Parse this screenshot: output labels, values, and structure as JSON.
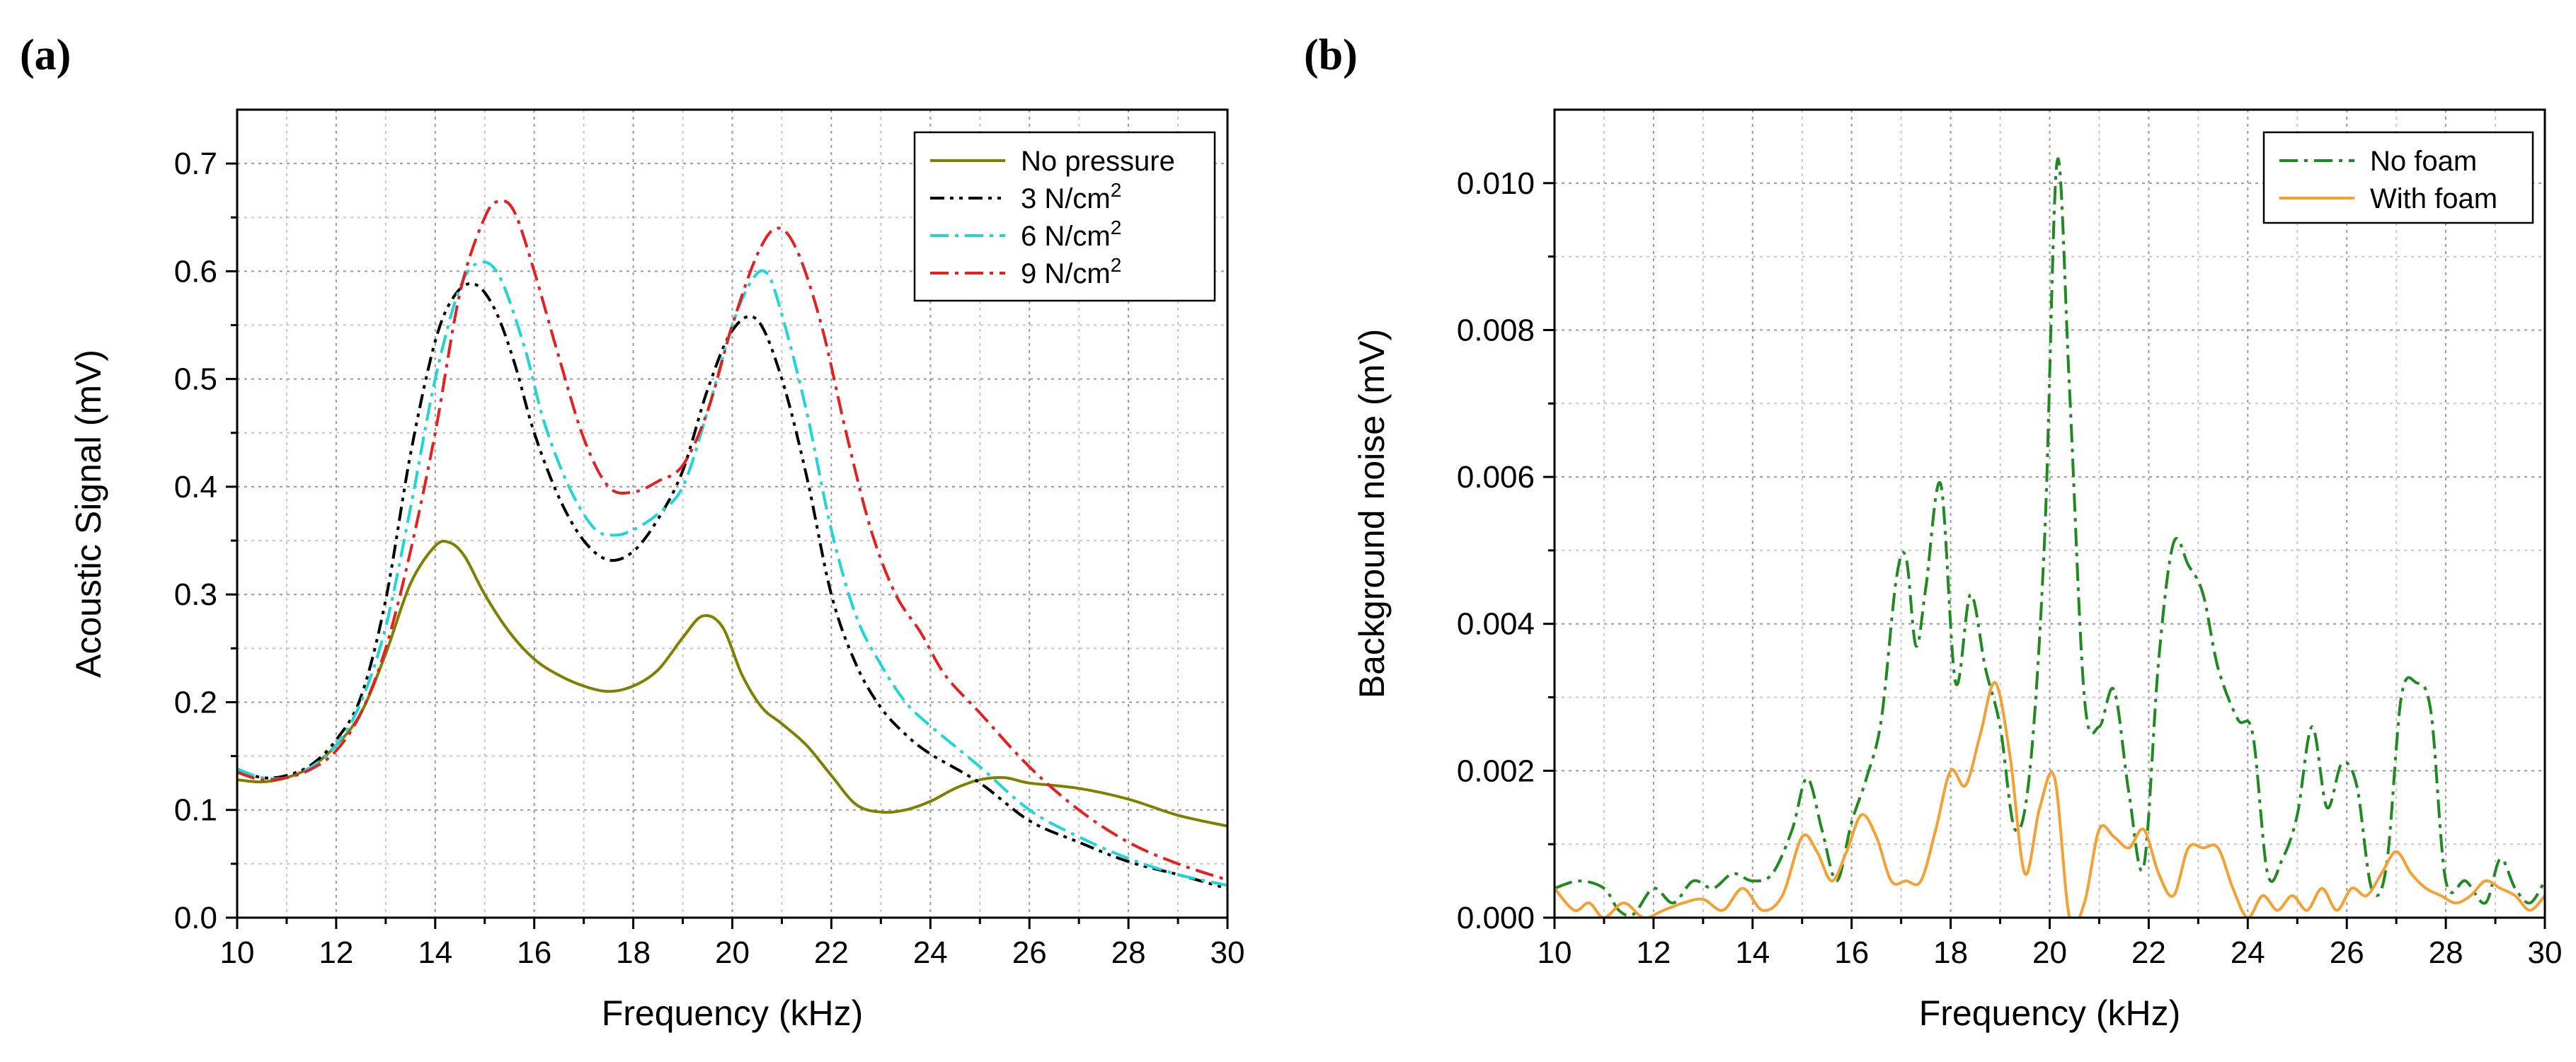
{
  "figure": {
    "panel_a_label": "(a)",
    "panel_b_label": "(b)"
  },
  "chart_data": [
    {
      "id": "a",
      "type": "line",
      "panel_label": "(a)",
      "xlabel": "Frequency (kHz)",
      "ylabel": "Acoustic Signal (mV)",
      "xlim": [
        10,
        30
      ],
      "ylim": [
        0.0,
        0.75
      ],
      "xticks": [
        10,
        12,
        14,
        16,
        18,
        20,
        22,
        24,
        26,
        28,
        30
      ],
      "xtick_labels": [
        "10",
        "12",
        "14",
        "16",
        "18",
        "20",
        "22",
        "24",
        "26",
        "28",
        "30"
      ],
      "yticks": [
        0.0,
        0.1,
        0.2,
        0.3,
        0.4,
        0.5,
        0.6,
        0.7
      ],
      "ytick_labels": [
        "0.0",
        "0.1",
        "0.2",
        "0.3",
        "0.4",
        "0.5",
        "0.6",
        "0.7"
      ],
      "grid": true,
      "legend": "top-right",
      "series": [
        {
          "name": "No pressure",
          "label_base": "No pressure",
          "label_sup": "",
          "color": "#7f7f00",
          "dash": "solid",
          "x": [
            10,
            10.5,
            11,
            11.5,
            12,
            12.5,
            13,
            13.5,
            14,
            14.3,
            14.6,
            15,
            15.5,
            16,
            16.5,
            17,
            17.5,
            18,
            18.5,
            19,
            19.4,
            19.8,
            20.2,
            20.6,
            21,
            21.5,
            22,
            22.5,
            23,
            23.5,
            24,
            24.5,
            25,
            25.5,
            26,
            27,
            28,
            29,
            30
          ],
          "y": [
            0.128,
            0.126,
            0.13,
            0.14,
            0.16,
            0.19,
            0.245,
            0.31,
            0.345,
            0.348,
            0.335,
            0.3,
            0.265,
            0.24,
            0.225,
            0.215,
            0.21,
            0.215,
            0.23,
            0.26,
            0.28,
            0.27,
            0.225,
            0.195,
            0.18,
            0.16,
            0.132,
            0.105,
            0.098,
            0.1,
            0.108,
            0.12,
            0.128,
            0.13,
            0.125,
            0.12,
            0.11,
            0.095,
            0.085
          ]
        },
        {
          "name": "3 N/cm2",
          "label_base": "3 N/cm",
          "label_sup": "2",
          "color": "#000000",
          "dash": "dashdotdot",
          "x": [
            10,
            10.5,
            11,
            11.5,
            12,
            12.5,
            13,
            13.5,
            14,
            14.4,
            14.8,
            15.2,
            15.6,
            16,
            16.5,
            17,
            17.5,
            18,
            18.5,
            19,
            19.5,
            20,
            20.5,
            21,
            21.5,
            22,
            22.5,
            23,
            23.5,
            24,
            25,
            26,
            27,
            28,
            29,
            30
          ],
          "y": [
            0.138,
            0.13,
            0.132,
            0.142,
            0.165,
            0.205,
            0.295,
            0.43,
            0.535,
            0.578,
            0.588,
            0.565,
            0.515,
            0.45,
            0.39,
            0.35,
            0.332,
            0.34,
            0.37,
            0.415,
            0.49,
            0.545,
            0.555,
            0.5,
            0.41,
            0.3,
            0.235,
            0.195,
            0.17,
            0.152,
            0.125,
            0.09,
            0.07,
            0.052,
            0.04,
            0.027
          ]
        },
        {
          "name": "6 N/cm2",
          "label_base": "6 N/cm",
          "label_sup": "2",
          "color": "#1fd6d6",
          "dash": "dashdot",
          "x": [
            10,
            10.5,
            11,
            11.5,
            12,
            12.5,
            13,
            13.5,
            14,
            14.5,
            14.9,
            15.3,
            15.8,
            16.2,
            16.7,
            17.2,
            17.6,
            18,
            18.5,
            19,
            19.5,
            20,
            20.4,
            20.7,
            21,
            21.5,
            22,
            22.5,
            23,
            23.5,
            24,
            25,
            26,
            27,
            28,
            29,
            30
          ],
          "y": [
            0.138,
            0.13,
            0.13,
            0.14,
            0.16,
            0.2,
            0.27,
            0.38,
            0.5,
            0.585,
            0.608,
            0.595,
            0.53,
            0.46,
            0.4,
            0.362,
            0.355,
            0.36,
            0.375,
            0.4,
            0.47,
            0.55,
            0.592,
            0.598,
            0.56,
            0.47,
            0.36,
            0.28,
            0.235,
            0.2,
            0.178,
            0.14,
            0.1,
            0.075,
            0.055,
            0.04,
            0.03
          ]
        },
        {
          "name": "9 N/cm2",
          "label_base": "9 N/cm",
          "label_sup": "2",
          "color": "#e62020",
          "dash": "dashdot",
          "x": [
            10,
            10.5,
            11,
            11.5,
            12,
            12.5,
            13,
            13.5,
            14,
            14.5,
            15,
            15.3,
            15.6,
            16,
            16.5,
            17,
            17.5,
            18,
            18.5,
            19,
            19.5,
            20,
            20.5,
            20.9,
            21.3,
            21.8,
            22.3,
            22.8,
            23.3,
            23.8,
            24.3,
            25,
            26,
            27,
            28,
            29,
            30
          ],
          "y": [
            0.135,
            0.128,
            0.13,
            0.138,
            0.155,
            0.19,
            0.25,
            0.34,
            0.45,
            0.58,
            0.65,
            0.665,
            0.655,
            0.6,
            0.52,
            0.445,
            0.4,
            0.395,
            0.405,
            0.42,
            0.47,
            0.55,
            0.615,
            0.64,
            0.62,
            0.55,
            0.45,
            0.36,
            0.3,
            0.265,
            0.225,
            0.19,
            0.14,
            0.1,
            0.07,
            0.05,
            0.035
          ]
        }
      ]
    },
    {
      "id": "b",
      "type": "line",
      "panel_label": "(b)",
      "xlabel": "Frequency (kHz)",
      "ylabel": "Background noise (mV)",
      "xlim": [
        10,
        30
      ],
      "ylim": [
        0.0,
        0.011
      ],
      "xticks": [
        10,
        12,
        14,
        16,
        18,
        20,
        22,
        24,
        26,
        28,
        30
      ],
      "xtick_labels": [
        "10",
        "12",
        "14",
        "16",
        "18",
        "20",
        "22",
        "24",
        "26",
        "28",
        "30"
      ],
      "yticks": [
        0.0,
        0.002,
        0.004,
        0.006,
        0.008,
        0.01
      ],
      "ytick_labels": [
        "0.000",
        "0.002",
        "0.004",
        "0.006",
        "0.008",
        "0.010"
      ],
      "grid": true,
      "legend": "top-right",
      "series": [
        {
          "name": "No foam",
          "label_base": "No foam",
          "label_sup": "",
          "color": "#1f8a1f",
          "dash": "dashdot",
          "x": [
            10,
            10.5,
            11,
            11.3,
            11.6,
            12,
            12.4,
            12.8,
            13.2,
            13.6,
            14,
            14.4,
            14.8,
            15.1,
            15.4,
            15.7,
            16,
            16.3,
            16.6,
            16.9,
            17.1,
            17.3,
            17.5,
            17.8,
            18.1,
            18.4,
            18.7,
            19,
            19.3,
            19.6,
            19.9,
            20.15,
            20.4,
            20.7,
            21,
            21.3,
            21.6,
            21.9,
            22.2,
            22.5,
            22.8,
            23.1,
            23.4,
            23.8,
            24.1,
            24.4,
            24.7,
            25,
            25.3,
            25.6,
            25.9,
            26.2,
            26.5,
            26.8,
            27.1,
            27.4,
            27.7,
            28,
            28.4,
            28.8,
            29.1,
            29.4,
            29.7,
            30
          ],
          "y": [
            0.0004,
            0.0005,
            0.0004,
            0.0001,
            5e-05,
            0.0004,
            0.0002,
            0.0005,
            0.0004,
            0.0006,
            0.0005,
            0.0006,
            0.0012,
            0.0019,
            0.0012,
            0.0005,
            0.0013,
            0.0019,
            0.0027,
            0.0046,
            0.0049,
            0.0037,
            0.0045,
            0.0059,
            0.0032,
            0.0044,
            0.0034,
            0.0026,
            0.0012,
            0.002,
            0.0052,
            0.0103,
            0.0072,
            0.003,
            0.0026,
            0.0031,
            0.0017,
            0.0007,
            0.0035,
            0.0051,
            0.0048,
            0.0044,
            0.0034,
            0.0027,
            0.0025,
            0.0006,
            0.0008,
            0.0014,
            0.0026,
            0.0015,
            0.0021,
            0.0018,
            0.0004,
            0.0007,
            0.003,
            0.0032,
            0.0028,
            0.0005,
            0.0005,
            0.0002,
            0.0008,
            0.0004,
            0.0002,
            0.0005
          ]
        },
        {
          "name": "With foam",
          "label_base": "With foam",
          "label_sup": "",
          "color": "#f5a032",
          "dash": "solid",
          "x": [
            10,
            10.4,
            10.7,
            11,
            11.4,
            11.8,
            12.2,
            12.6,
            13,
            13.4,
            13.8,
            14.2,
            14.6,
            15,
            15.3,
            15.6,
            15.9,
            16.2,
            16.5,
            16.8,
            17.1,
            17.4,
            17.7,
            18,
            18.3,
            18.6,
            18.9,
            19.2,
            19.5,
            19.8,
            20.1,
            20.4,
            20.7,
            21,
            21.3,
            21.6,
            21.9,
            22.2,
            22.5,
            22.8,
            23.1,
            23.4,
            23.7,
            24,
            24.3,
            24.6,
            24.9,
            25.2,
            25.5,
            25.8,
            26.1,
            26.4,
            26.7,
            27,
            27.3,
            27.6,
            27.9,
            28.2,
            28.5,
            28.8,
            29.1,
            29.4,
            29.7,
            30
          ],
          "y": [
            0.0004,
            0.0001,
            0.0002,
            0.0,
            0.0002,
            0.0,
            0.0001,
            0.0002,
            0.00025,
            0.0001,
            0.0004,
            0.0001,
            0.0003,
            0.0011,
            0.0009,
            0.0005,
            0.0009,
            0.0014,
            0.0011,
            0.0005,
            0.0005,
            0.0005,
            0.0012,
            0.002,
            0.0018,
            0.0025,
            0.0032,
            0.0022,
            0.0006,
            0.0015,
            0.0019,
            0.0,
            0.0002,
            0.0012,
            0.0011,
            0.00095,
            0.0012,
            0.0006,
            0.0003,
            0.00095,
            0.00095,
            0.00095,
            0.0004,
            0.0,
            0.0003,
            0.0001,
            0.0003,
            0.0001,
            0.0004,
            0.0001,
            0.0004,
            0.0003,
            0.0006,
            0.0009,
            0.0006,
            0.0004,
            0.0003,
            0.0002,
            0.0003,
            0.0005,
            0.0004,
            0.0003,
            0.0001,
            0.0003
          ]
        }
      ]
    }
  ]
}
